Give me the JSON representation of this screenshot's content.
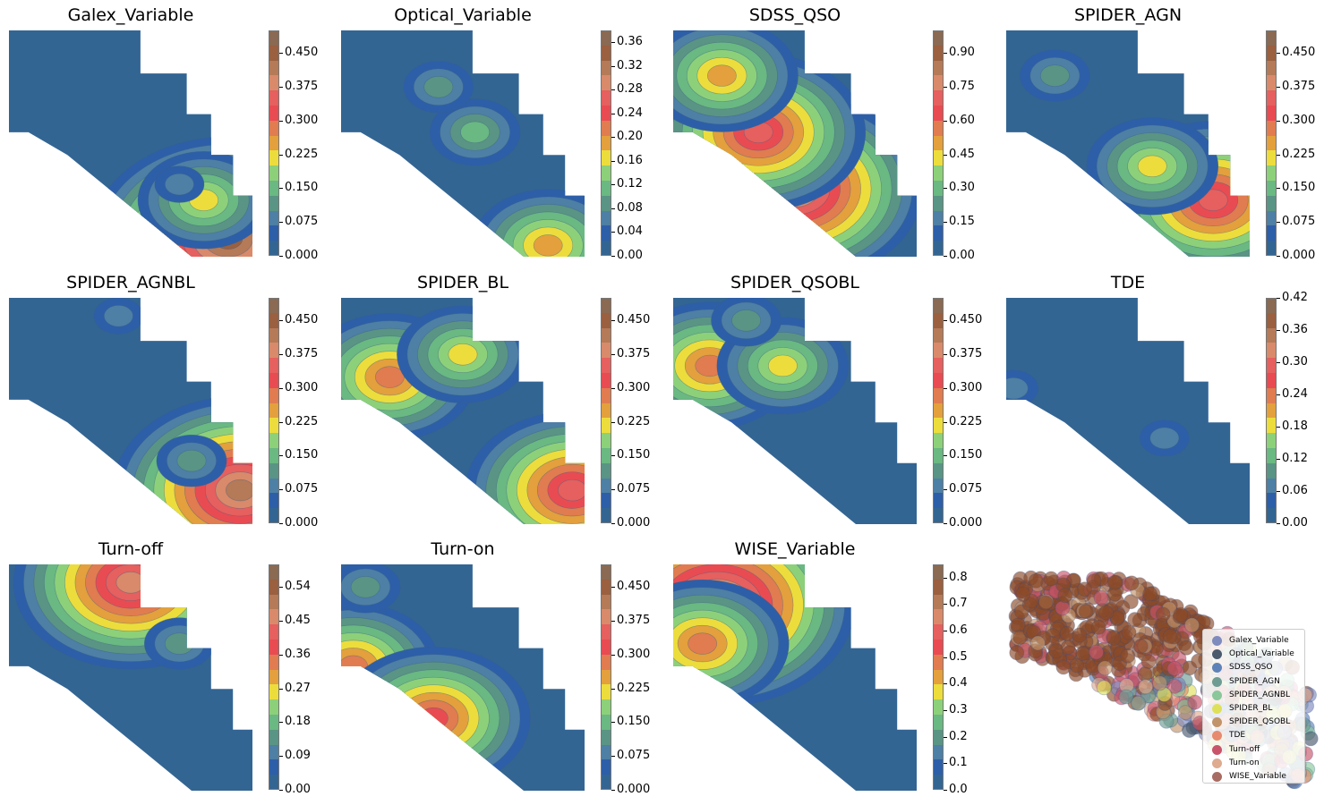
{
  "colors": {
    "scale": [
      "#336593",
      "#2d5fa8",
      "#4e7fa5",
      "#5a9484",
      "#6ab882",
      "#8dd07a",
      "#ecdd3c",
      "#e3a03c",
      "#e07c50",
      "#e94b52",
      "#e5605e",
      "#d98a6a",
      "#b57a58",
      "#9a6040",
      "#8a6a52"
    ],
    "base": "#336593",
    "legend": [
      "#7f8bbd",
      "#4c5a6e",
      "#5f83b8",
      "#6e9c92",
      "#8ac79a",
      "#dfe05a",
      "#c2946a",
      "#e88a6e",
      "#c8546a",
      "#deaa90",
      "#a86c62"
    ]
  },
  "chart_data": [
    {
      "type": "contourf",
      "title": "Galex_Variable",
      "vmax": 0.5,
      "colorbar_ticks": [
        "0.000",
        "0.075",
        "0.150",
        "0.225",
        "0.300",
        "0.375",
        "0.450"
      ],
      "tick_values": [
        0,
        0.075,
        0.15,
        0.225,
        0.3,
        0.375,
        0.45
      ],
      "hotspots": [
        [
          0.9,
          0.92,
          0.45
        ],
        [
          0.8,
          0.75,
          0.2
        ],
        [
          0.7,
          0.68,
          0.08
        ]
      ]
    },
    {
      "type": "contourf",
      "title": "Optical_Variable",
      "vmax": 0.38,
      "colorbar_ticks": [
        "0.00",
        "0.04",
        "0.08",
        "0.12",
        "0.16",
        "0.20",
        "0.24",
        "0.28",
        "0.32",
        "0.36"
      ],
      "tick_values": [
        0,
        0.04,
        0.08,
        0.12,
        0.16,
        0.2,
        0.24,
        0.28,
        0.32,
        0.36
      ],
      "hotspots": [
        [
          0.85,
          0.95,
          0.2
        ],
        [
          0.55,
          0.45,
          0.12
        ],
        [
          0.4,
          0.25,
          0.08
        ]
      ]
    },
    {
      "type": "contourf",
      "title": "SDSS_QSO",
      "vmax": 1.0,
      "colorbar_ticks": [
        "0.00",
        "0.15",
        "0.30",
        "0.45",
        "0.60",
        "0.75",
        "0.90"
      ],
      "tick_values": [
        0,
        0.15,
        0.3,
        0.45,
        0.6,
        0.75,
        0.9
      ],
      "hotspots": [
        [
          0.5,
          0.7,
          0.85
        ],
        [
          0.35,
          0.45,
          0.7
        ],
        [
          0.2,
          0.2,
          0.5
        ]
      ]
    },
    {
      "type": "contourf",
      "title": "SPIDER_AGN",
      "vmax": 0.5,
      "colorbar_ticks": [
        "0.000",
        "0.075",
        "0.150",
        "0.225",
        "0.300",
        "0.375",
        "0.450"
      ],
      "tick_values": [
        0,
        0.075,
        0.15,
        0.225,
        0.3,
        0.375,
        0.45
      ],
      "hotspots": [
        [
          0.85,
          0.75,
          0.35
        ],
        [
          0.6,
          0.6,
          0.2
        ],
        [
          0.2,
          0.2,
          0.12
        ]
      ]
    },
    {
      "type": "contourf",
      "title": "SPIDER_AGNBL",
      "vmax": 0.5,
      "colorbar_ticks": [
        "0.000",
        "0.075",
        "0.150",
        "0.225",
        "0.300",
        "0.375",
        "0.450"
      ],
      "tick_values": [
        0,
        0.075,
        0.15,
        0.225,
        0.3,
        0.375,
        0.45
      ],
      "hotspots": [
        [
          0.95,
          0.85,
          0.42
        ],
        [
          0.75,
          0.72,
          0.12
        ],
        [
          0.45,
          0.08,
          0.08
        ]
      ]
    },
    {
      "type": "contourf",
      "title": "SPIDER_BL",
      "vmax": 0.5,
      "colorbar_ticks": [
        "0.000",
        "0.075",
        "0.150",
        "0.225",
        "0.300",
        "0.375",
        "0.450"
      ],
      "tick_values": [
        0,
        0.075,
        0.15,
        0.225,
        0.3,
        0.375,
        0.45
      ],
      "hotspots": [
        [
          0.2,
          0.35,
          0.3
        ],
        [
          0.5,
          0.25,
          0.2
        ],
        [
          0.95,
          0.85,
          0.35
        ]
      ]
    },
    {
      "type": "contourf",
      "title": "SPIDER_QSOBL",
      "vmax": 0.5,
      "colorbar_ticks": [
        "0.000",
        "0.075",
        "0.150",
        "0.225",
        "0.300",
        "0.375",
        "0.450"
      ],
      "tick_values": [
        0,
        0.075,
        0.15,
        0.225,
        0.3,
        0.375,
        0.45
      ],
      "hotspots": [
        [
          0.15,
          0.3,
          0.3
        ],
        [
          0.45,
          0.3,
          0.2
        ],
        [
          0.3,
          0.1,
          0.12
        ]
      ]
    },
    {
      "type": "contourf",
      "title": "TDE",
      "vmax": 0.42,
      "colorbar_ticks": [
        "0.00",
        "0.06",
        "0.12",
        "0.18",
        "0.24",
        "0.30",
        "0.36",
        "0.42"
      ],
      "tick_values": [
        0,
        0.06,
        0.12,
        0.18,
        0.24,
        0.3,
        0.36,
        0.42
      ],
      "hotspots": [
        [
          0.03,
          0.4,
          0.05
        ],
        [
          0.65,
          0.62,
          0.03
        ]
      ]
    },
    {
      "type": "contourf",
      "title": "Turn-off",
      "vmax": 0.6,
      "colorbar_ticks": [
        "0.00",
        "0.09",
        "0.18",
        "0.27",
        "0.36",
        "0.45",
        "0.54"
      ],
      "tick_values": [
        0,
        0.09,
        0.18,
        0.27,
        0.36,
        0.45,
        0.54
      ],
      "hotspots": [
        [
          0.5,
          0.08,
          0.45
        ],
        [
          0.7,
          0.35,
          0.12
        ]
      ]
    },
    {
      "type": "contourf",
      "title": "Turn-on",
      "vmax": 0.5,
      "colorbar_ticks": [
        "0.000",
        "0.075",
        "0.150",
        "0.225",
        "0.300",
        "0.375",
        "0.450"
      ],
      "tick_values": [
        0,
        0.075,
        0.15,
        0.225,
        0.3,
        0.375,
        0.45
      ],
      "hotspots": [
        [
          0.05,
          0.45,
          0.3
        ],
        [
          0.38,
          0.68,
          0.32
        ],
        [
          0.1,
          0.1,
          0.12
        ]
      ]
    },
    {
      "type": "contourf",
      "title": "WISE_Variable",
      "vmax": 0.85,
      "colorbar_ticks": [
        "0.0",
        "0.1",
        "0.2",
        "0.3",
        "0.4",
        "0.5",
        "0.6",
        "0.7",
        "0.8"
      ],
      "tick_values": [
        0,
        0.1,
        0.2,
        0.3,
        0.4,
        0.5,
        0.6,
        0.7,
        0.8
      ],
      "hotspots": [
        [
          0.18,
          0.18,
          0.8
        ],
        [
          0.12,
          0.35,
          0.5
        ]
      ]
    }
  ],
  "scatter_legend": [
    "Galex_Variable",
    "Optical_Variable",
    "SDSS_QSO",
    "SPIDER_AGN",
    "SPIDER_AGNBL",
    "SPIDER_BL",
    "SPIDER_QSOBL",
    "TDE",
    "Turn-off",
    "Turn-on",
    "WISE_Variable"
  ]
}
